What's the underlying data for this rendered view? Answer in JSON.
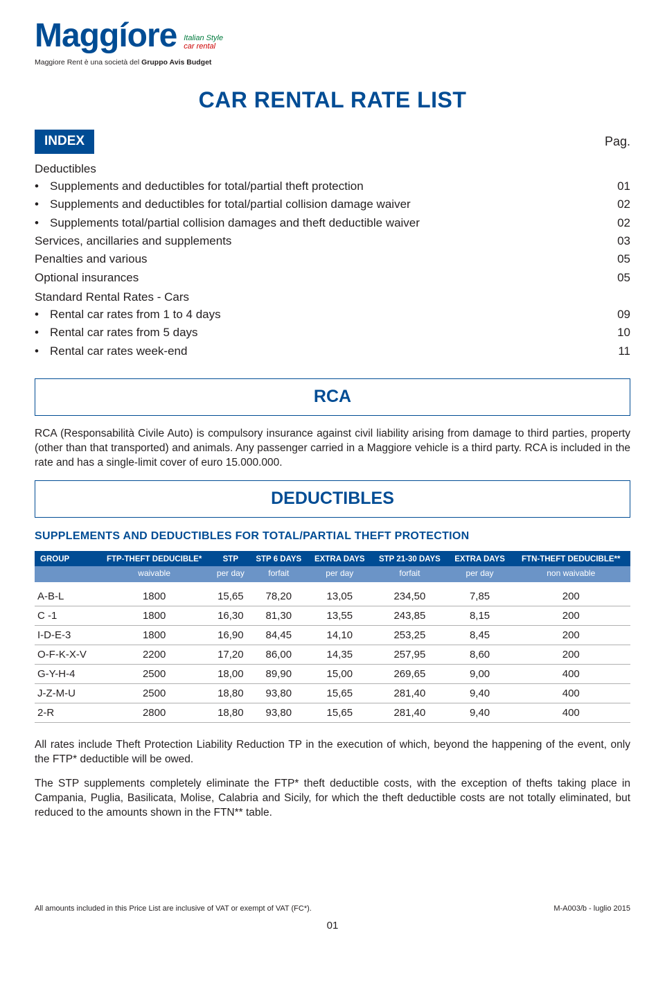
{
  "logo": {
    "text": "Maggíore",
    "sub1": "Italian Style",
    "sub2": "car rental"
  },
  "tagline": {
    "prefix": "Maggiore Rent è una società del ",
    "bold": "Gruppo Avis Budget"
  },
  "mainTitle": "CAR RENTAL RATE LIST",
  "indexLabel": "INDEX",
  "pagLabel": "Pag.",
  "index": {
    "g1": {
      "head": "Deductibles",
      "i1": {
        "t": "Supplements and deductibles for total/partial theft protection",
        "p": "01"
      },
      "i2": {
        "t": "Supplements and deductibles for total/partial collision damage waiver",
        "p": "02"
      },
      "i3": {
        "t": "Supplements total/partial collision damages and theft deductible waiver",
        "p": "02"
      }
    },
    "l1": {
      "t": "Services, ancillaries and supplements",
      "p": "03"
    },
    "l2": {
      "t": "Penalties and various",
      "p": "05"
    },
    "l3": {
      "t": "Optional insurances",
      "p": "05"
    },
    "g2": {
      "head": "Standard Rental Rates - Cars",
      "i1": {
        "t": "Rental car rates from 1 to 4 days",
        "p": "09"
      },
      "i2": {
        "t": "Rental car rates from 5 days",
        "p": "10"
      },
      "i3": {
        "t": "Rental car rates week-end",
        "p": "11"
      }
    }
  },
  "rca": {
    "title": "RCA",
    "p1": "RCA (Responsabilità Civile Auto) is compulsory insurance against civil liability arising from damage to third parties, property (other than that transported) and animals. Any passenger carried in a Maggiore vehicle is a third party. RCA is included in the rate and has a single-limit cover of euro 15.000.000."
  },
  "ded": {
    "title": "DEDUCTIBLES",
    "subhead": "SUPPLEMENTS AND DEDUCTIBLES FOR TOTAL/PARTIAL THEFT PROTECTION",
    "h1": {
      "c0": "GROUP",
      "c1": "FTP-THEFT DEDUCIBLE*",
      "c2": "STP",
      "c3": "STP 6 DAYS",
      "c4": "EXTRA DAYS",
      "c5": "STP 21-30 DAYS",
      "c6": "EXTRA DAYS",
      "c7": "FTN-THEFT DEDUCIBLE**"
    },
    "h2": {
      "c0": "",
      "c1": "waivable",
      "c2": "per day",
      "c3": "forfait",
      "c4": "per day",
      "c5": "forfait",
      "c6": "per day",
      "c7": "non waivable"
    },
    "r0": {
      "c0": "A-B-L",
      "c1": "1800",
      "c2": "15,65",
      "c3": "78,20",
      "c4": "13,05",
      "c5": "234,50",
      "c6": "7,85",
      "c7": "200"
    },
    "r1": {
      "c0": "C -1",
      "c1": "1800",
      "c2": "16,30",
      "c3": "81,30",
      "c4": "13,55",
      "c5": "243,85",
      "c6": "8,15",
      "c7": "200"
    },
    "r2": {
      "c0": "I-D-E-3",
      "c1": "1800",
      "c2": "16,90",
      "c3": "84,45",
      "c4": "14,10",
      "c5": "253,25",
      "c6": "8,45",
      "c7": "200"
    },
    "r3": {
      "c0": "O-F-K-X-V",
      "c1": "2200",
      "c2": "17,20",
      "c3": "86,00",
      "c4": "14,35",
      "c5": "257,95",
      "c6": "8,60",
      "c7": "200"
    },
    "r4": {
      "c0": "G-Y-H-4",
      "c1": "2500",
      "c2": "18,00",
      "c3": "89,90",
      "c4": "15,00",
      "c5": "269,65",
      "c6": "9,00",
      "c7": "400"
    },
    "r5": {
      "c0": "J-Z-M-U",
      "c1": "2500",
      "c2": "18,80",
      "c3": "93,80",
      "c4": "15,65",
      "c5": "281,40",
      "c6": "9,40",
      "c7": "400"
    },
    "r6": {
      "c0": "2-R",
      "c1": "2800",
      "c2": "18,80",
      "c3": "93,80",
      "c4": "15,65",
      "c5": "281,40",
      "c6": "9,40",
      "c7": "400"
    },
    "note1": "All rates include Theft Protection Liability Reduction TP in the execution of which, beyond the happening of the event, only the FTP* deductible will be owed.",
    "note2": "The STP supplements completely eliminate the FTP* theft deductible costs, with the exception of thefts taking place in Campania, Puglia, Basilicata, Molise, Calabria and Sicily, for which the theft deductible costs are not totally eliminated, but reduced to the amounts shown in the FTN** table."
  },
  "footer": {
    "left": "All amounts included in this Price List are inclusive of VAT or exempt of VAT (FC*).",
    "right": "M-A003/b - luglio 2015",
    "page": "01"
  }
}
